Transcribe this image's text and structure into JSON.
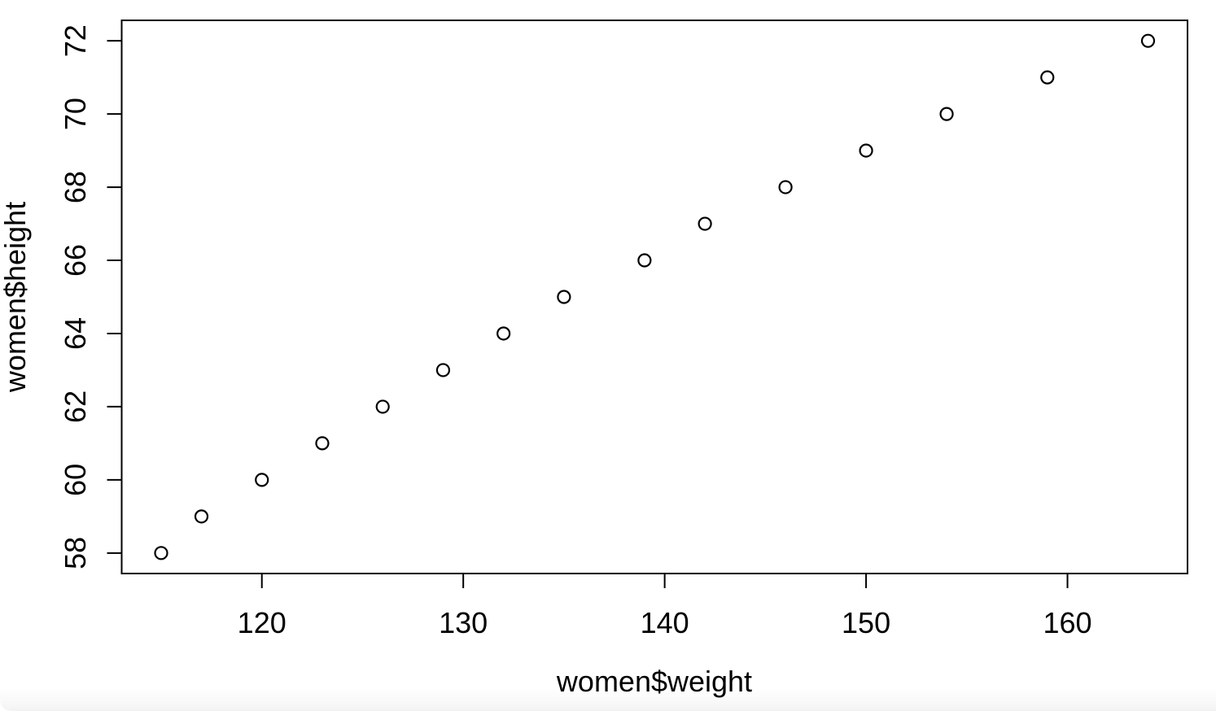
{
  "chart_data": {
    "type": "scatter",
    "title": "",
    "xlabel": "women$weight",
    "ylabel": "women$height",
    "x": [
      115,
      117,
      120,
      123,
      126,
      129,
      132,
      135,
      139,
      142,
      146,
      150,
      154,
      159,
      164
    ],
    "y": [
      58,
      59,
      60,
      61,
      62,
      63,
      64,
      65,
      66,
      67,
      68,
      69,
      70,
      71,
      72
    ],
    "x_ticks": [
      120,
      130,
      140,
      150,
      160
    ],
    "y_ticks": [
      58,
      60,
      62,
      64,
      66,
      68,
      70,
      72
    ],
    "xlim": [
      113.04,
      165.96
    ],
    "ylim": [
      57.44,
      72.56
    ],
    "grid": false,
    "legend": null,
    "marker": "open-circle",
    "marker_color": "#000000",
    "axis_color": "#000000",
    "background_color": "#ffffff"
  }
}
